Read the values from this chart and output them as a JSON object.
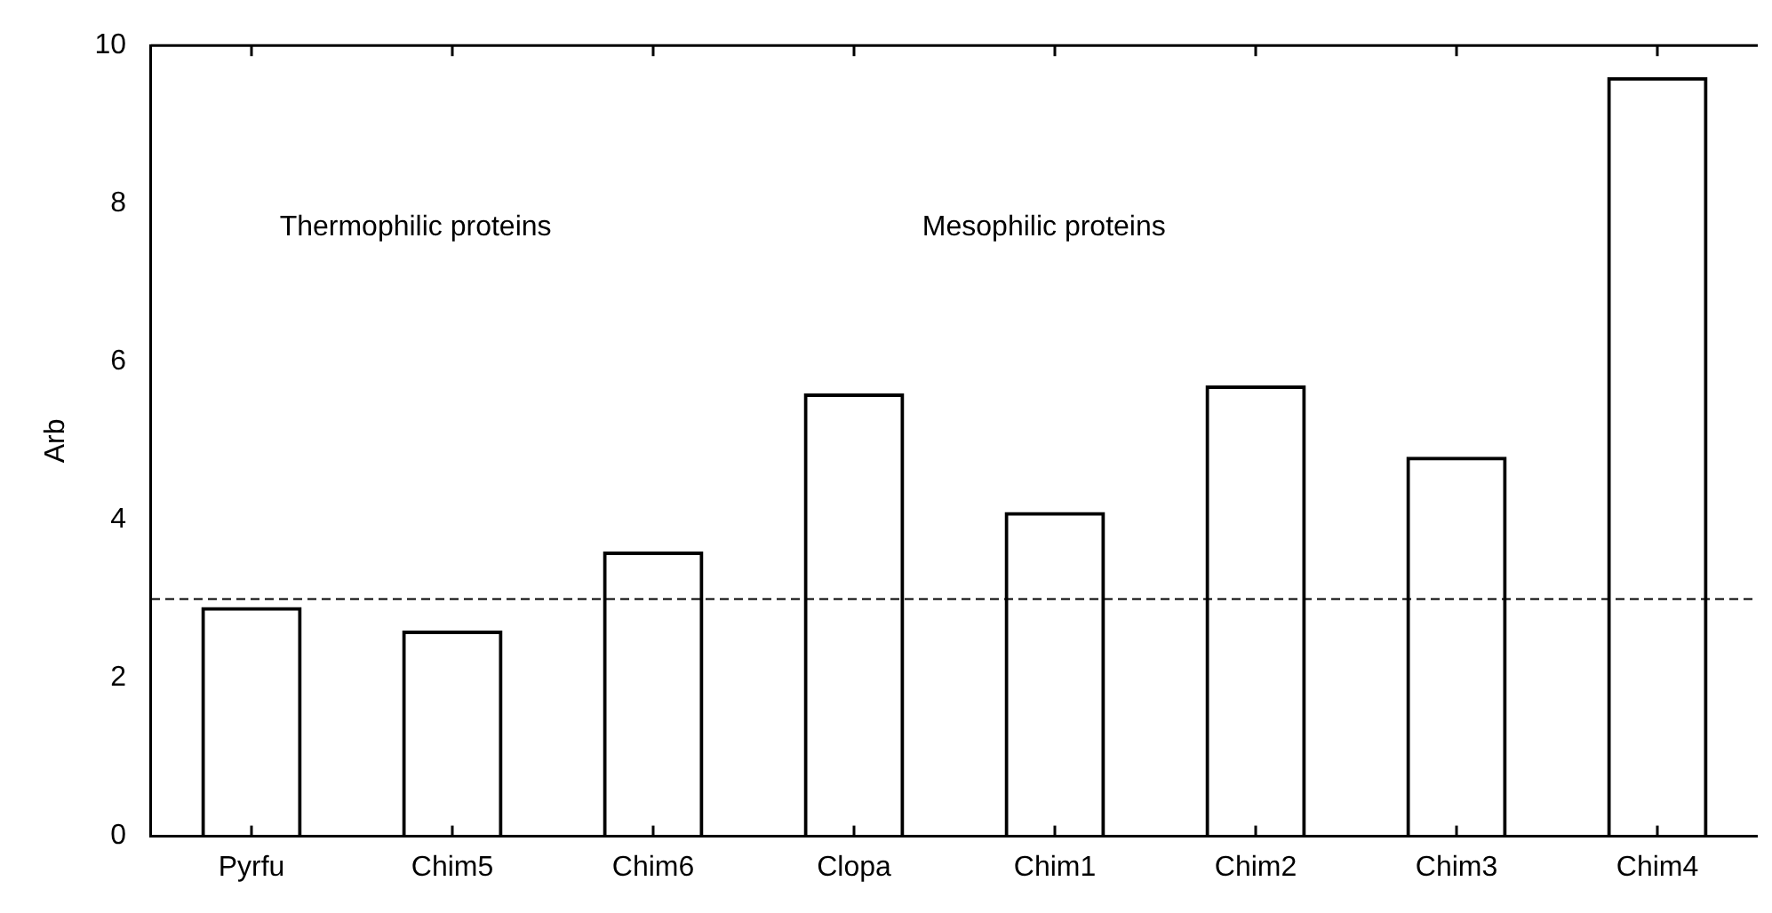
{
  "chart_data": {
    "type": "bar",
    "ylabel": "Arb",
    "categories": [
      "Pyrfu",
      "Chim5",
      "Chim6",
      "Clopa",
      "Chim1",
      "Chim2",
      "Chim3",
      "Chim4"
    ],
    "values": [
      2.9,
      2.6,
      3.6,
      5.6,
      4.1,
      5.7,
      4.8,
      9.6
    ],
    "color": "#000000",
    "ylim": [
      0,
      10
    ],
    "yticks": [
      0,
      2,
      4,
      6,
      8,
      10
    ],
    "ref_lines": [
      {
        "axis": "y",
        "value": 3.0,
        "line_style": "dashed",
        "color": "#000000"
      }
    ],
    "annotations": [
      "Thermophilic proteins",
      "Mesophilic proteins"
    ],
    "grid": false,
    "legend": false
  }
}
